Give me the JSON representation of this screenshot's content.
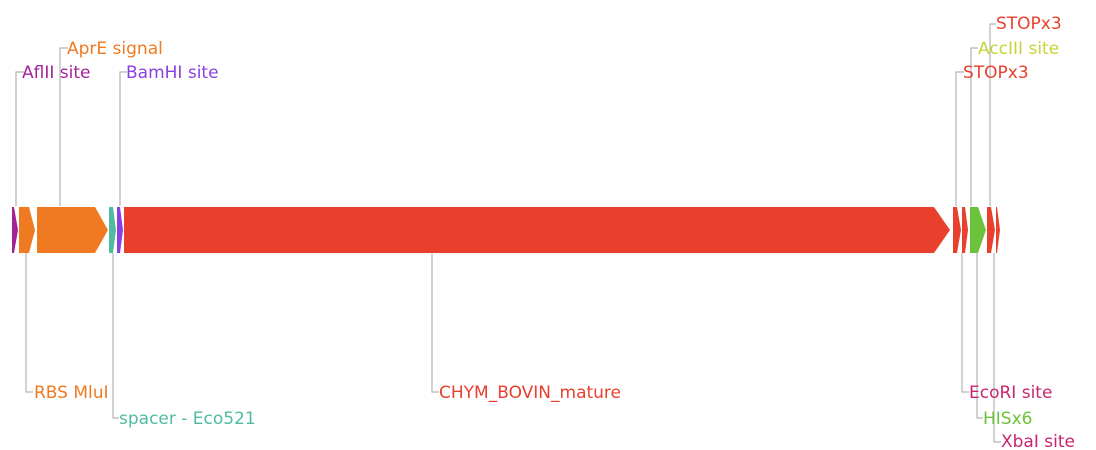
{
  "features": [
    {
      "id": "aflii",
      "label": "AflII site",
      "color": "#a3229b"
    },
    {
      "id": "rbs",
      "label": "RBS MluI",
      "color": "#f07a21"
    },
    {
      "id": "apre",
      "label": "AprE signal",
      "color": "#f07a21"
    },
    {
      "id": "spacer",
      "label": "spacer - Eco521",
      "color": "#4fbba0"
    },
    {
      "id": "bamhi",
      "label": "BamHI site",
      "color": "#8a3fe0"
    },
    {
      "id": "chym",
      "label": "CHYM_BOVIN_mature",
      "color": "#e8402d"
    },
    {
      "id": "stop1",
      "label": "STOPx3",
      "color": "#e8402d"
    },
    {
      "id": "ecori",
      "label": "EcoRI site",
      "color": "#c8256f"
    },
    {
      "id": "his",
      "label": "HISx6",
      "color": "#6cc23a"
    },
    {
      "id": "acciii",
      "label": "AccIII site",
      "color": "#c4d43a"
    },
    {
      "id": "stop2",
      "label": "STOPx3",
      "color": "#e8402d"
    },
    {
      "id": "xbai",
      "label": "XbaI site",
      "color": "#c8256f"
    }
  ]
}
